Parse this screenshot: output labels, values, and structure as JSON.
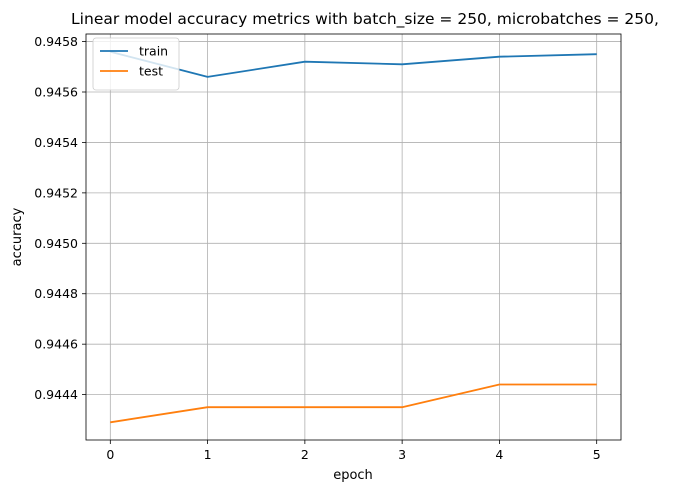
{
  "chart_data": {
    "type": "line",
    "title": "Linear model accuracy metrics with batch_size = 250, microbatches = 250,",
    "xlabel": "epoch",
    "ylabel": "accuracy",
    "x": [
      0,
      1,
      2,
      3,
      4,
      5
    ],
    "xlim": [
      -0.25,
      5.25
    ],
    "ylim": [
      0.94422,
      0.94583
    ],
    "xticks": [
      0,
      1,
      2,
      3,
      4,
      5
    ],
    "yticks": [
      0.9444,
      0.9446,
      0.9448,
      0.945,
      0.9452,
      0.9454,
      0.9456,
      0.9458
    ],
    "ytick_labels": [
      "0.9444",
      "0.9446",
      "0.9448",
      "0.9450",
      "0.9452",
      "0.9454",
      "0.9456",
      "0.9458"
    ],
    "xtick_labels": [
      "0",
      "1",
      "2",
      "3",
      "4",
      "5"
    ],
    "grid": true,
    "legend_position": "upper-left",
    "series": [
      {
        "name": "train",
        "color": "#1f77b4",
        "values": [
          0.94576,
          0.94566,
          0.94572,
          0.94571,
          0.94574,
          0.94575
        ]
      },
      {
        "name": "test",
        "color": "#ff7f0e",
        "values": [
          0.94429,
          0.94435,
          0.94435,
          0.94435,
          0.94444,
          0.94444
        ]
      }
    ]
  }
}
